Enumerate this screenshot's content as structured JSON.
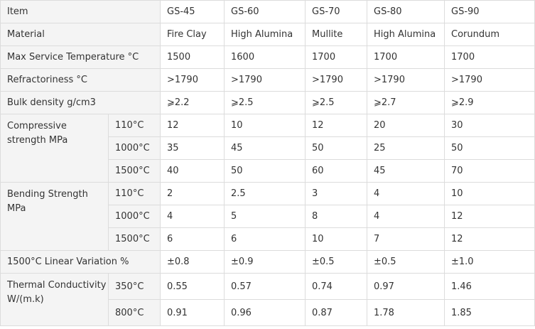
{
  "table": {
    "header": [
      "Item",
      "GS-45",
      "GS-60",
      "GS-70",
      "GS-80",
      "GS-90"
    ],
    "rows": [
      {
        "label": "Material",
        "cells": [
          "Fire Clay",
          "High Alumina",
          "Mullite",
          "High Alumina",
          "Corundum"
        ]
      },
      {
        "label": "Max Service Temperature °C",
        "cells": [
          "1500",
          "1600",
          "1700",
          "1700",
          "1700"
        ]
      },
      {
        "label": "Refractoriness °C",
        "cells": [
          ">1790",
          ">1790",
          ">1790",
          ">1790",
          ">1790"
        ]
      },
      {
        "label": "Bulk density g/cm3",
        "cells": [
          "⩾2.2",
          "⩾2.5",
          "⩾2.5",
          "⩾2.7",
          "⩾2.9"
        ]
      },
      {
        "label": "Compressive strength MPa",
        "sub": [
          {
            "condition": "110°C",
            "cells": [
              "12",
              "10",
              "12",
              "20",
              "30"
            ]
          },
          {
            "condition": "1000°C",
            "cells": [
              "35",
              "45",
              "50",
              "25",
              "50"
            ]
          },
          {
            "condition": "1500°C",
            "cells": [
              "40",
              "50",
              "60",
              "45",
              "70"
            ]
          }
        ]
      },
      {
        "label": "Bending Strength MPa",
        "sub": [
          {
            "condition": "110°C",
            "cells": [
              "2",
              "2.5",
              "3",
              "4",
              "10"
            ]
          },
          {
            "condition": "1000°C",
            "cells": [
              "4",
              "5",
              "8",
              "4",
              "12"
            ]
          },
          {
            "condition": "1500°C",
            "cells": [
              "6",
              "6",
              "10",
              "7",
              "12"
            ]
          }
        ]
      },
      {
        "label": "1500°C Linear Variation %",
        "cells": [
          "±0.8",
          "±0.9",
          "±0.5",
          "±0.5",
          "±1.0"
        ]
      },
      {
        "label": "Thermal Conductivity W/(m.k)",
        "sub": [
          {
            "condition": "350°C",
            "cells": [
              "0.55",
              "0.57",
              "0.74",
              "0.97",
              "1.46"
            ]
          },
          {
            "condition": "800°C",
            "cells": [
              "0.91",
              "0.96",
              "0.87",
              "1.78",
              "1.85"
            ]
          }
        ]
      }
    ]
  }
}
